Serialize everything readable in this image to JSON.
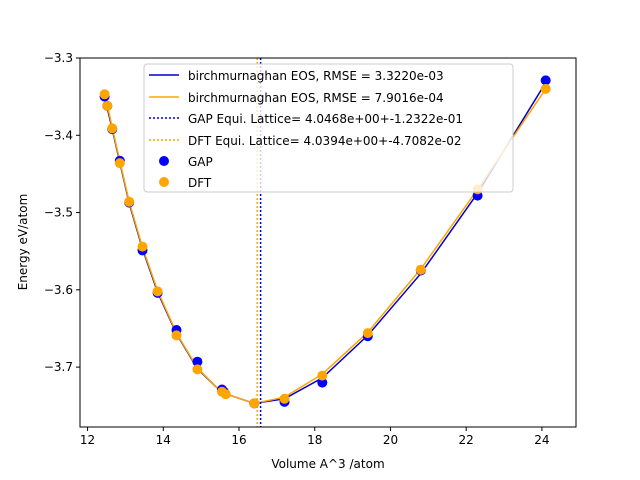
{
  "chart_data": {
    "type": "scatter",
    "xlabel": "Volume  A^3 /atom",
    "ylabel": "Energy eV/atom",
    "xlim": [
      11.8,
      24.9
    ],
    "ylim": [
      -3.7775,
      -3.3
    ],
    "xticks": [
      12,
      14,
      16,
      18,
      20,
      22,
      24
    ],
    "yticks": [
      -3.3,
      -3.4,
      -3.5,
      -3.6,
      -3.7
    ],
    "xtick_labels": [
      "12",
      "14",
      "16",
      "18",
      "20",
      "22",
      "24"
    ],
    "ytick_labels": [
      "−3.3",
      "−3.4",
      "−3.5",
      "−3.6",
      "−3.7"
    ],
    "grid": false,
    "legend_position": "top-center",
    "lines": [
      {
        "name": "birchmurnaghan EOS, RMSE = 3.3220e-03",
        "color": "#0000cc",
        "points": [
          [
            12.45,
            -3.352
          ],
          [
            12.52,
            -3.365
          ],
          [
            12.65,
            -3.392
          ],
          [
            12.85,
            -3.435
          ],
          [
            13.1,
            -3.488
          ],
          [
            13.45,
            -3.547
          ],
          [
            13.85,
            -3.603
          ],
          [
            14.35,
            -3.657
          ],
          [
            14.9,
            -3.702
          ],
          [
            15.55,
            -3.733
          ],
          [
            16.4,
            -3.747
          ],
          [
            17.2,
            -3.741
          ],
          [
            18.2,
            -3.714
          ],
          [
            19.4,
            -3.659
          ],
          [
            20.8,
            -3.579
          ],
          [
            22.3,
            -3.475
          ],
          [
            24.1,
            -3.332
          ]
        ]
      },
      {
        "name": "birchmurnaghan EOS, RMSE = 7.9016e-04",
        "color": "#ffa500",
        "points": [
          [
            12.45,
            -3.347
          ],
          [
            12.52,
            -3.361
          ],
          [
            12.65,
            -3.39
          ],
          [
            12.85,
            -3.433
          ],
          [
            13.1,
            -3.486
          ],
          [
            13.45,
            -3.545
          ],
          [
            13.85,
            -3.601
          ],
          [
            14.35,
            -3.656
          ],
          [
            14.9,
            -3.701
          ],
          [
            15.55,
            -3.733
          ],
          [
            16.4,
            -3.747
          ],
          [
            17.2,
            -3.739
          ],
          [
            18.2,
            -3.709
          ],
          [
            19.4,
            -3.655
          ],
          [
            20.8,
            -3.573
          ],
          [
            22.3,
            -3.47
          ],
          [
            24.1,
            -3.34
          ]
        ]
      }
    ],
    "vlines": [
      {
        "name": "GAP Equi. Lattice= 4.0468e+00+-1.2322e-01",
        "color": "#0000cc",
        "x": 16.57
      },
      {
        "name": "DFT Equi. Lattice= 4.0394e+00+-4.7082e-02",
        "color": "#ffa500",
        "x": 16.48
      }
    ],
    "series": [
      {
        "name": "GAP",
        "color": "#0000ff",
        "points": [
          [
            12.45,
            -3.35
          ],
          [
            12.52,
            -3.362
          ],
          [
            12.65,
            -3.392
          ],
          [
            12.85,
            -3.433
          ],
          [
            13.1,
            -3.487
          ],
          [
            13.45,
            -3.549
          ],
          [
            13.85,
            -3.604
          ],
          [
            14.35,
            -3.652
          ],
          [
            14.9,
            -3.693
          ],
          [
            15.55,
            -3.729
          ],
          [
            15.6,
            -3.732
          ],
          [
            16.4,
            -3.747
          ],
          [
            17.2,
            -3.745
          ],
          [
            18.2,
            -3.72
          ],
          [
            19.4,
            -3.66
          ],
          [
            20.8,
            -3.575
          ],
          [
            22.3,
            -3.478
          ],
          [
            24.1,
            -3.329
          ]
        ]
      },
      {
        "name": "DFT",
        "color": "#ffa500",
        "points": [
          [
            12.45,
            -3.347
          ],
          [
            12.52,
            -3.362
          ],
          [
            12.65,
            -3.391
          ],
          [
            12.85,
            -3.436
          ],
          [
            13.1,
            -3.486
          ],
          [
            13.45,
            -3.544
          ],
          [
            13.85,
            -3.602
          ],
          [
            14.35,
            -3.659
          ],
          [
            14.9,
            -3.703
          ],
          [
            15.55,
            -3.732
          ],
          [
            15.65,
            -3.735
          ],
          [
            16.4,
            -3.747
          ],
          [
            17.2,
            -3.741
          ],
          [
            18.2,
            -3.711
          ],
          [
            19.4,
            -3.656
          ],
          [
            20.8,
            -3.574
          ],
          [
            22.3,
            -3.47
          ],
          [
            24.1,
            -3.34
          ]
        ]
      }
    ]
  }
}
